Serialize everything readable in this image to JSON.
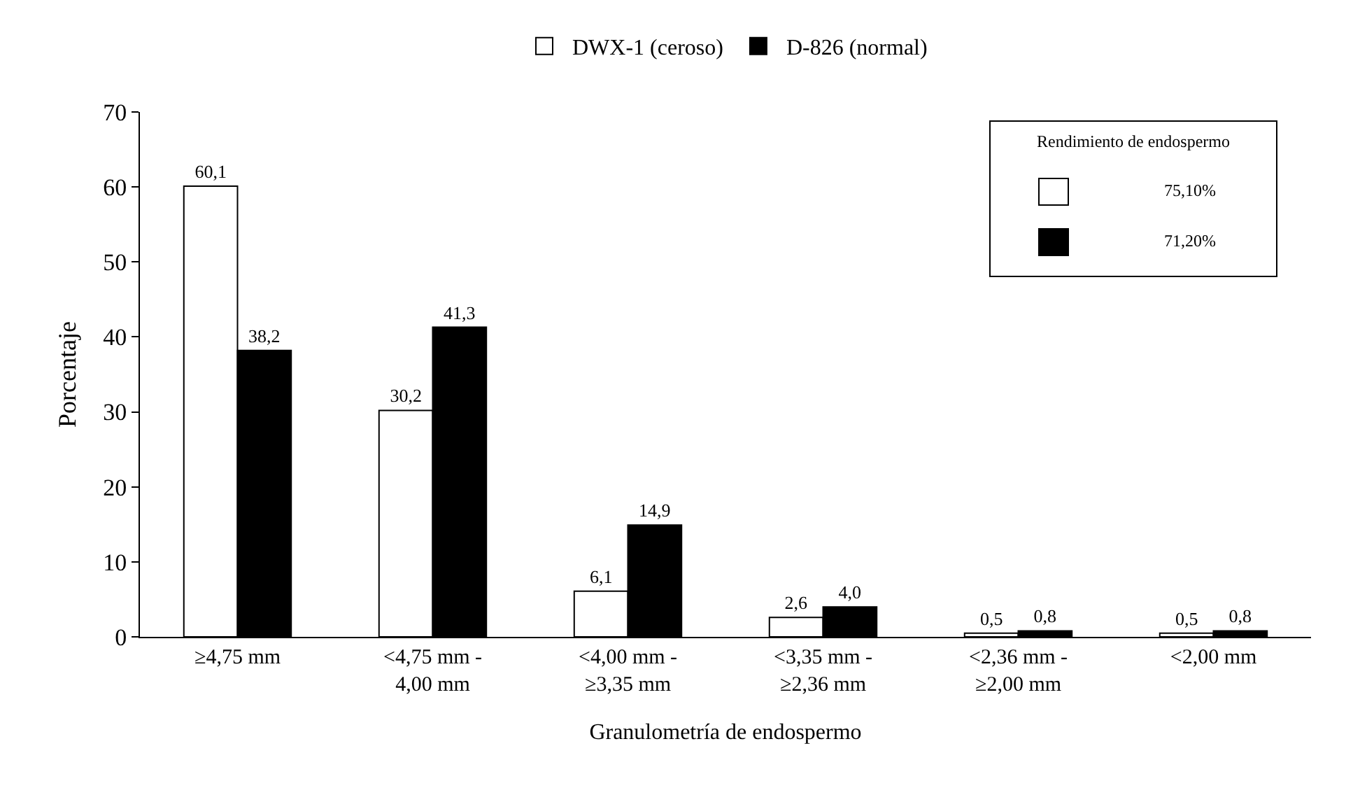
{
  "chart_data": {
    "type": "bar",
    "xlabel": "Granulometría de endospermo",
    "ylabel": "Porcentaje",
    "categories": [
      "≥4,75 mm",
      "<4,75 mm - 4,00 mm",
      "<4,00 mm - ≥3,35 mm",
      "<3,35 mm - ≥2,36 mm",
      "<2,36 mm - ≥2,00 mm",
      "<2,00 mm"
    ],
    "series": [
      {
        "name": "DWX-1 (ceroso)",
        "color": "#ffffff",
        "values": [
          60.1,
          30.2,
          6.1,
          2.6,
          0.5,
          0.5
        ],
        "value_labels": [
          "60,1",
          "30,2",
          "6,1",
          "2,6",
          "0,5",
          "0,5"
        ]
      },
      {
        "name": "D-826 (normal)",
        "color": "#000000",
        "values": [
          38.2,
          41.3,
          14.9,
          4.0,
          0.8,
          0.8
        ],
        "value_labels": [
          "38,2",
          "41,3",
          "14,9",
          "4,0",
          "0,8",
          "0,8"
        ]
      }
    ],
    "ylim": [
      0,
      70
    ],
    "yticks": [
      0,
      10,
      20,
      30,
      40,
      50,
      60,
      70
    ],
    "grid": false,
    "legend": "top",
    "annotations": [
      "Rendimiento de endospermo",
      "75,10%",
      "71,20%"
    ]
  }
}
